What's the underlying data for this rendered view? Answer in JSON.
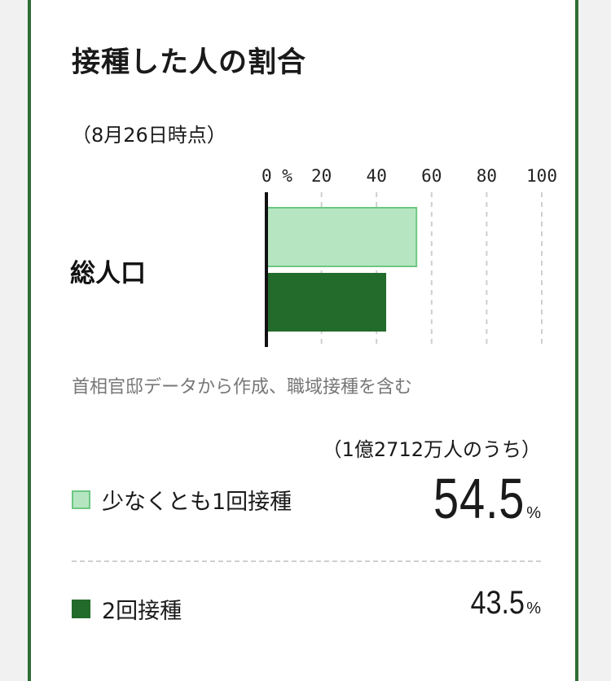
{
  "title": "接種した人の割合",
  "date_note": "（8月26日時点）",
  "source_note": "首相官邸データから作成、職域接種を含む",
  "basis_note": "（1億2712万人のうち）",
  "colors": {
    "frame": "#2e6e34",
    "first_dose": "#b6e6c1",
    "first_dose_border": "#6cc882",
    "second_dose": "#236b2a"
  },
  "legend": {
    "first": {
      "label": "少なくとも1回接種",
      "value": "54.5",
      "unit": "%"
    },
    "second": {
      "label": "2回接種",
      "value": "43.5",
      "unit": "%"
    }
  },
  "chart_data": {
    "type": "bar",
    "orientation": "horizontal",
    "categories": [
      "総人口"
    ],
    "series": [
      {
        "name": "少なくとも1回接種",
        "values": [
          54.5
        ],
        "color": "#b6e6c1"
      },
      {
        "name": "2回接種",
        "values": [
          43.5
        ],
        "color": "#236b2a"
      }
    ],
    "ticks": [
      "0 %",
      "20",
      "40",
      "60",
      "80",
      "100"
    ],
    "xlim": [
      0,
      100
    ],
    "grid": true
  }
}
